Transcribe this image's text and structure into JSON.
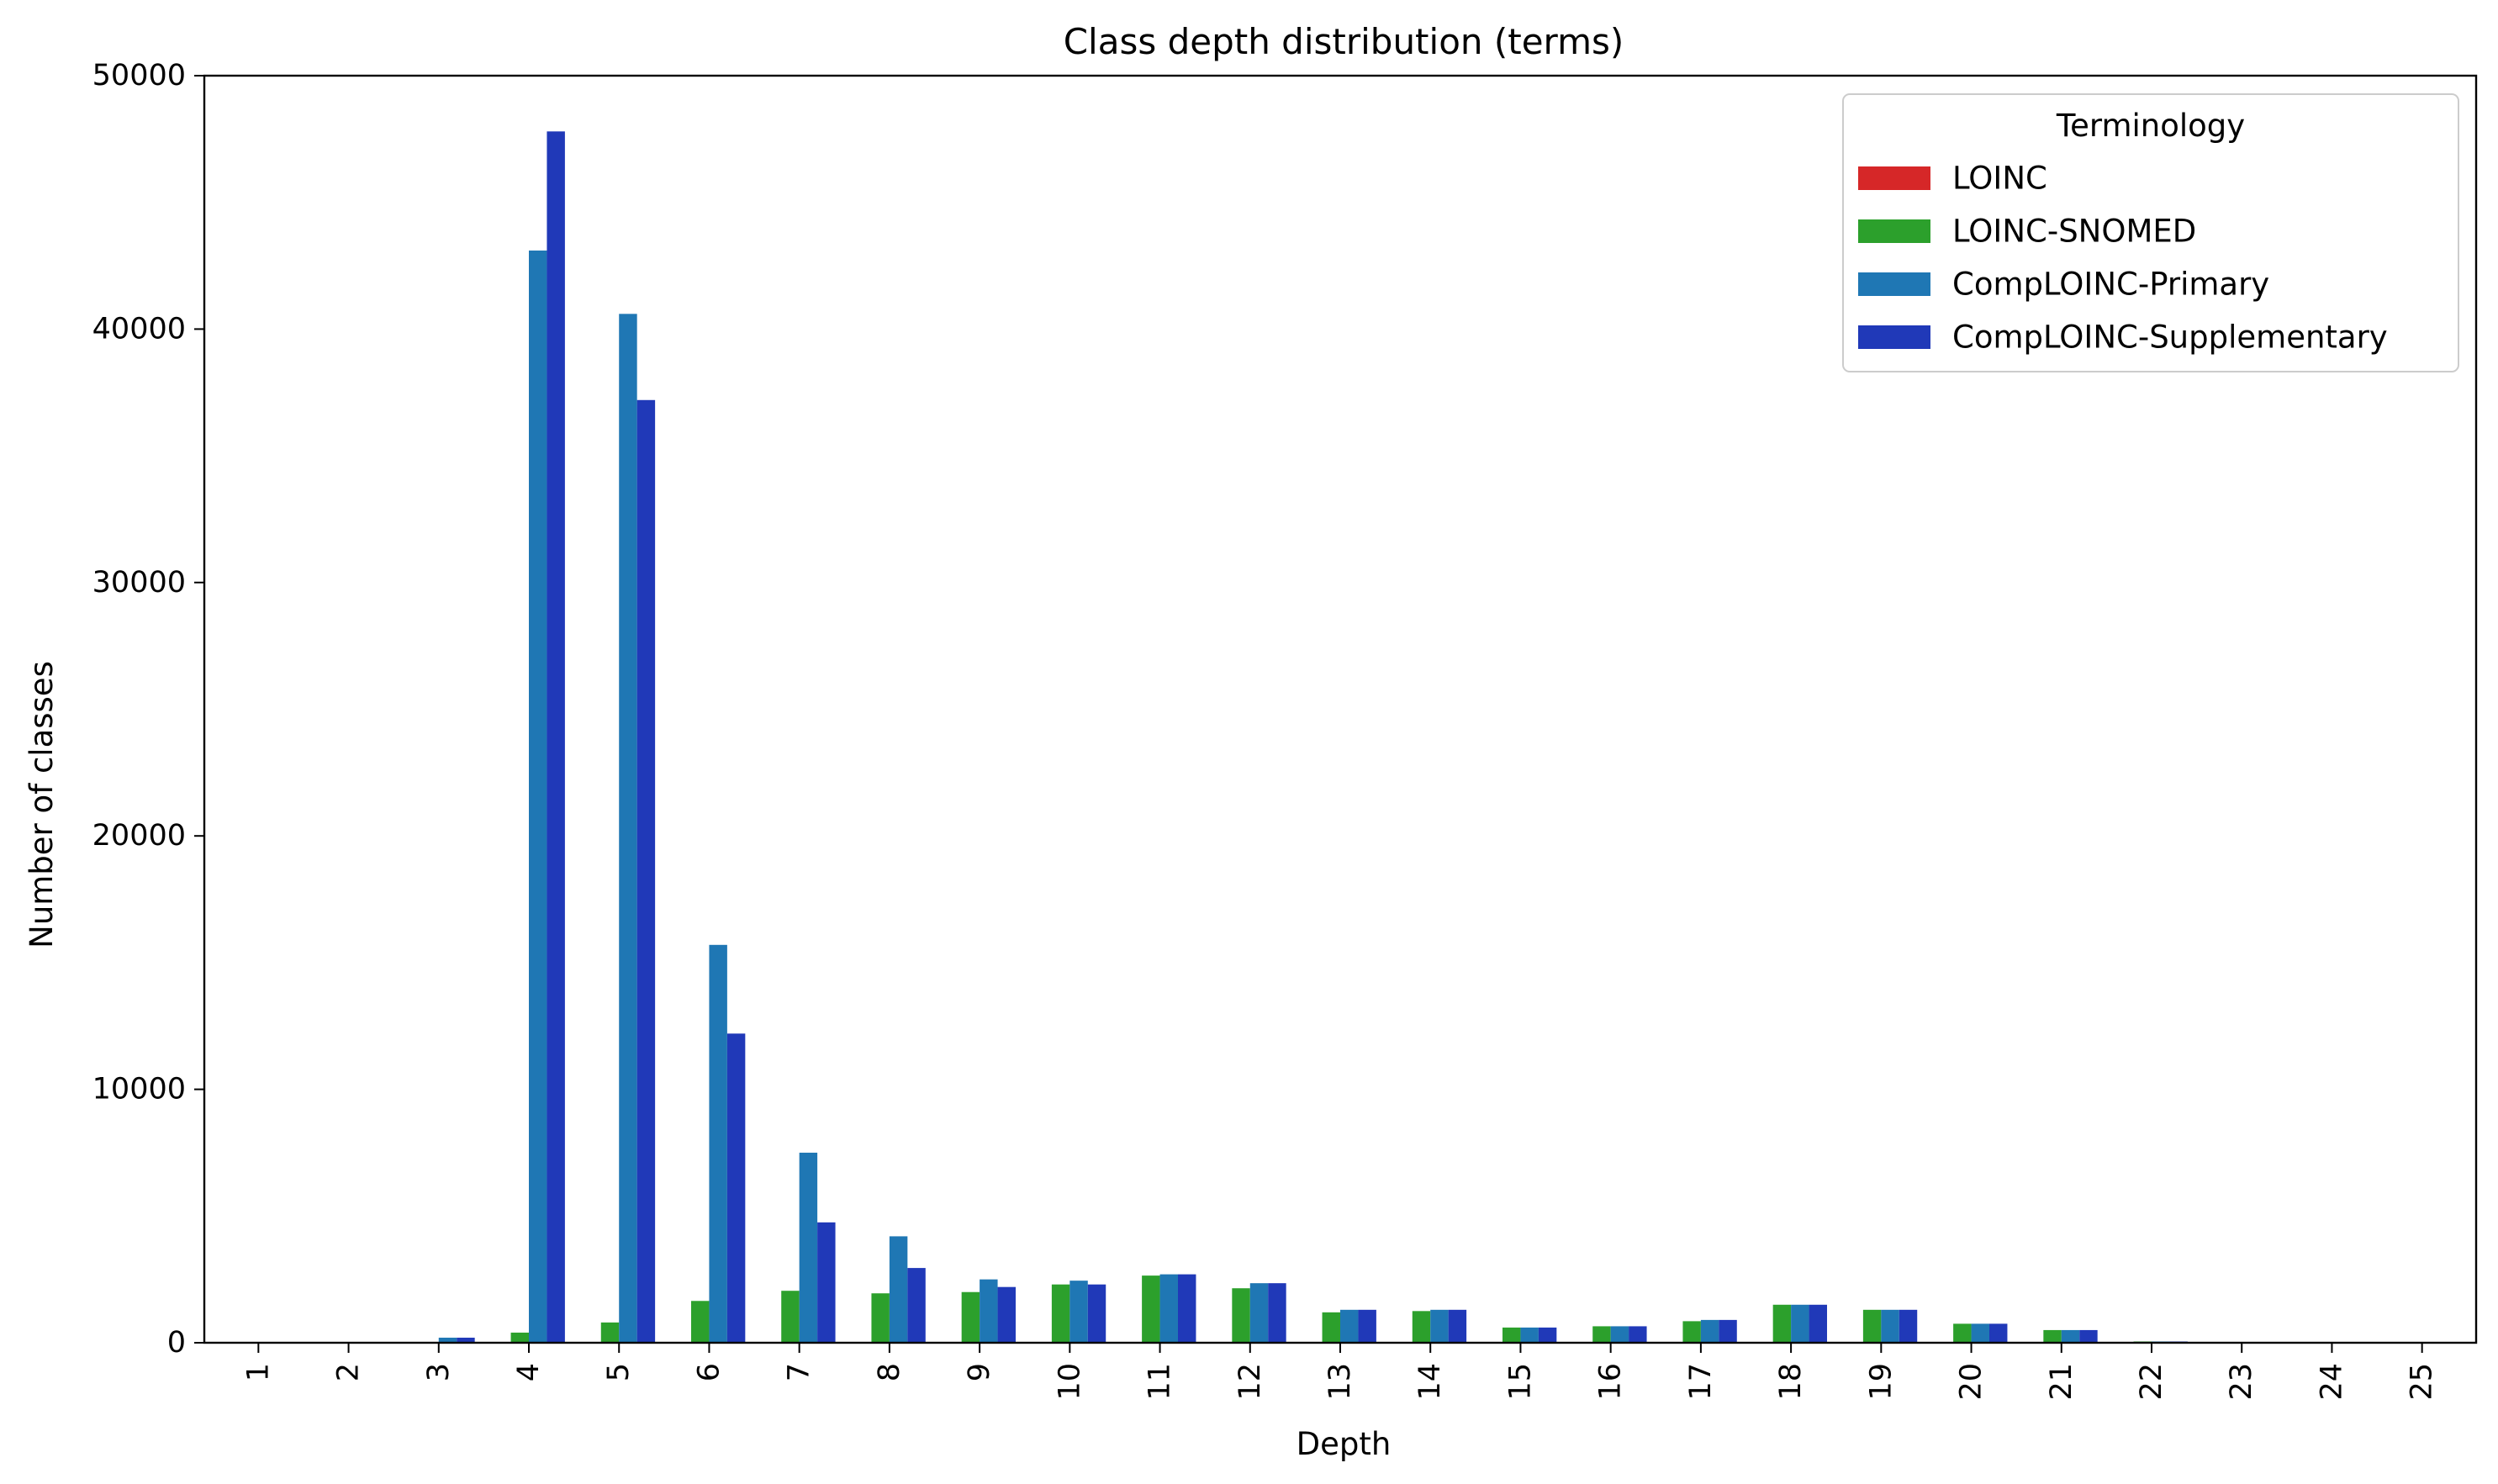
{
  "chart_data": {
    "type": "bar",
    "title": "Class depth distribution (terms)",
    "xlabel": "Depth",
    "ylabel": "Number of classes",
    "ylim": [
      0,
      50000
    ],
    "yticks": [
      0,
      10000,
      20000,
      30000,
      40000,
      50000
    ],
    "grid": false,
    "legend": {
      "title": "Terminology",
      "placement": "top-right"
    },
    "categories": [
      "1",
      "2",
      "3",
      "4",
      "5",
      "6",
      "7",
      "8",
      "9",
      "10",
      "11",
      "12",
      "13",
      "14",
      "15",
      "16",
      "17",
      "18",
      "19",
      "20",
      "21",
      "22",
      "23",
      "24",
      "25"
    ],
    "series": [
      {
        "name": "LOINC",
        "color": "#d62728",
        "values": [
          0,
          0,
          0,
          0,
          0,
          0,
          0,
          0,
          0,
          0,
          0,
          0,
          0,
          0,
          0,
          0,
          0,
          0,
          0,
          0,
          0,
          0,
          0,
          0,
          0
        ]
      },
      {
        "name": "LOINC-SNOMED",
        "color": "#2ca02c",
        "values": [
          0,
          0,
          20,
          400,
          800,
          1650,
          2050,
          1950,
          2000,
          2300,
          2650,
          2150,
          1200,
          1250,
          600,
          650,
          850,
          1500,
          1300,
          750,
          500,
          50,
          0,
          0,
          0
        ]
      },
      {
        "name": "CompLOINC-Primary",
        "color": "#1f77b4",
        "values": [
          0,
          10,
          200,
          43100,
          40600,
          15700,
          7500,
          4200,
          2500,
          2450,
          2700,
          2350,
          1300,
          1300,
          600,
          650,
          900,
          1500,
          1300,
          750,
          500,
          50,
          0,
          0,
          0
        ]
      },
      {
        "name": "CompLOINC-Supplementary",
        "color": "#2039b8",
        "values": [
          0,
          10,
          200,
          47800,
          37200,
          12200,
          4750,
          2950,
          2200,
          2300,
          2700,
          2350,
          1300,
          1300,
          600,
          650,
          900,
          1500,
          1300,
          750,
          500,
          50,
          0,
          0,
          0
        ]
      }
    ]
  }
}
